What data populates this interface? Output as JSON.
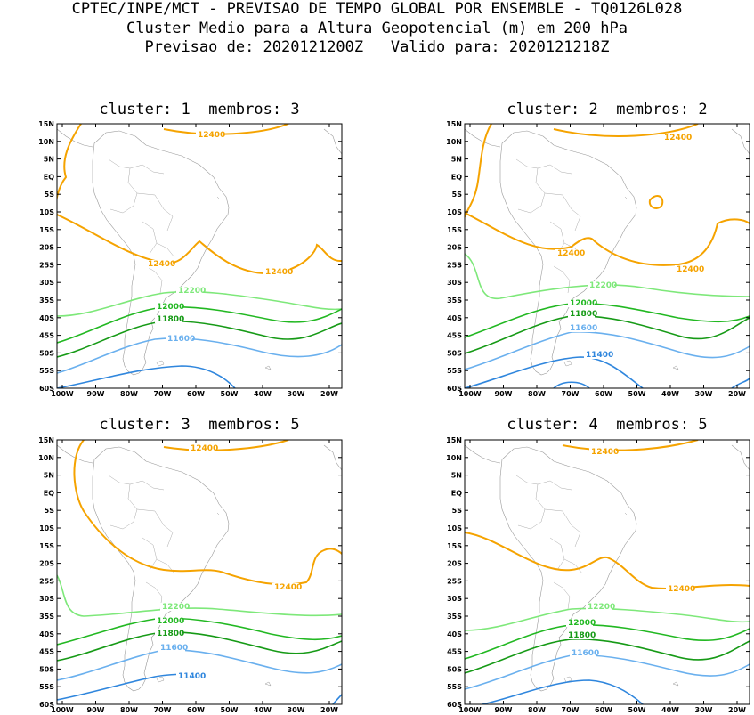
{
  "header": {
    "line1": "CPTEC/INPE/MCT - PREVISAO DE TEMPO GLOBAL POR ENSEMBLE - TQ0126L028",
    "line2": "Cluster Medio para a Altura Geopotencial (m) em 200 hPa",
    "line3": "Previsao de: 2020121200Z   Valido para: 2020121218Z"
  },
  "panels": [
    {
      "title": "cluster: 1  membros: 3"
    },
    {
      "title": "cluster: 2  membros: 2"
    },
    {
      "title": "cluster: 3  membros: 5"
    },
    {
      "title": "cluster: 4  membros: 5"
    }
  ],
  "axes": {
    "lat_labels": [
      "15N",
      "10N",
      "5N",
      "EQ",
      "5S",
      "10S",
      "15S",
      "20S",
      "25S",
      "30S",
      "35S",
      "40S",
      "45S",
      "50S",
      "55S",
      "60S"
    ],
    "lon_labels": [
      "100W",
      "90W",
      "80W",
      "70W",
      "60W",
      "50W",
      "40W",
      "30W",
      "20W"
    ]
  },
  "contour_colors": {
    "12400": "#f5a300",
    "12200": "#7ee87a",
    "12000": "#22b822",
    "11800": "#169a16",
    "11600": "#6ab0ee",
    "11400": "#2f86dd"
  },
  "labels": {
    "c12400": "12400",
    "c12200": "12200",
    "c12000": "12000",
    "c11800": "11800",
    "c11600": "11600",
    "c11400": "11400"
  }
}
